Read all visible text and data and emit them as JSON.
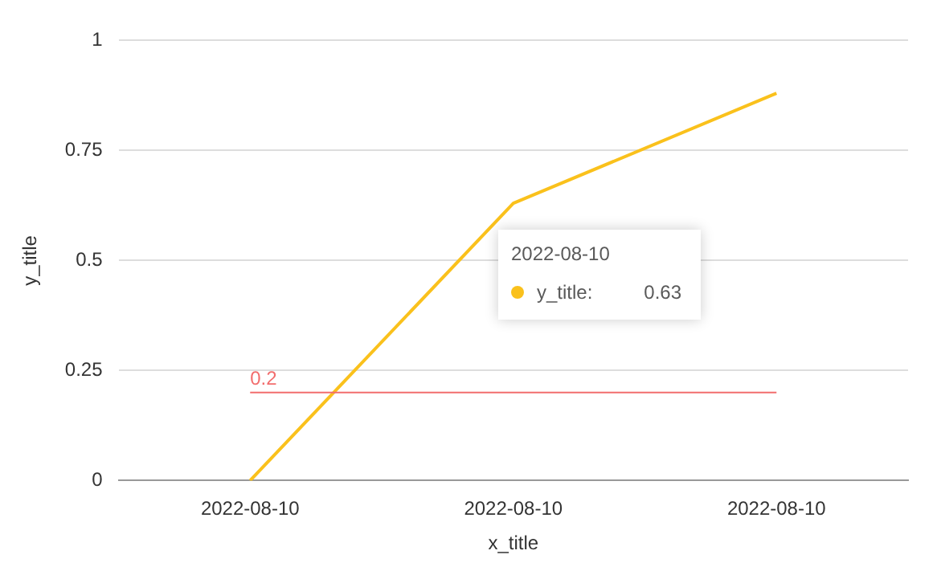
{
  "chart_data": {
    "type": "line",
    "xlabel": "x_title",
    "ylabel": "y_title",
    "categories": [
      "2022-08-10",
      "2022-08-10",
      "2022-08-10"
    ],
    "series": [
      {
        "name": "y_title",
        "color": "#fac11c",
        "values": [
          0,
          0.63,
          0.88
        ]
      }
    ],
    "ylim": [
      0,
      1
    ],
    "yticks": [
      0,
      0.25,
      0.5,
      0.75,
      1
    ],
    "grid": "y",
    "legend": "center",
    "marker": "none",
    "ref_lines": [
      {
        "axis": "y",
        "value": 0.2,
        "label": "0.2",
        "color": "#f26d6d"
      }
    ],
    "annotations": [
      "2022-08-10",
      ":",
      "0.63"
    ]
  }
}
